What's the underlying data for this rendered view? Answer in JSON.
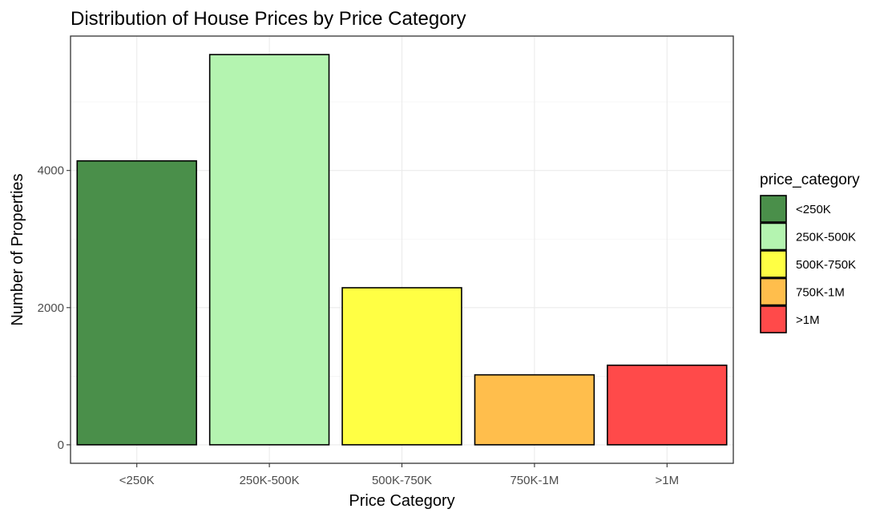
{
  "chart_data": {
    "type": "bar",
    "title": "Distribution of House Prices by Price Category",
    "xlabel": "Price Category",
    "ylabel": "Number of Properties",
    "categories": [
      "<250K",
      "250K-500K",
      "500K-750K",
      "750K-1M",
      ">1M"
    ],
    "values": [
      4140,
      5690,
      2290,
      1020,
      1160
    ],
    "colors": [
      "#4a8f4a",
      "#b4f4b0",
      "#ffff44",
      "#ffbe4c",
      "#ff4a4a"
    ],
    "ylim": [
      -270,
      5960
    ],
    "yticks": [
      0,
      2000,
      4000
    ],
    "yticks_labels": [
      "0",
      "2000",
      "4000"
    ],
    "grid": true,
    "legend": {
      "title": "price_category",
      "position": "right",
      "items": [
        "<250K",
        "250K-500K",
        "500K-750K",
        "750K-1M",
        ">1M"
      ]
    }
  }
}
